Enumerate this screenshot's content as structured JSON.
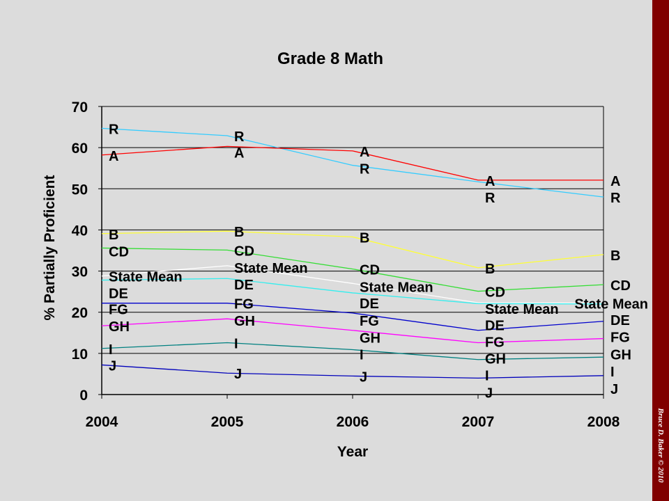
{
  "chart_data": {
    "type": "line",
    "title": "Grade 8 Math",
    "xlabel": "Year",
    "ylabel": "% Partially Proficient",
    "x": [
      2004,
      2005,
      2006,
      2007,
      2008
    ],
    "ylim": [
      0,
      70
    ],
    "yticks": [
      0,
      10,
      20,
      30,
      40,
      50,
      60,
      70
    ],
    "grid": true,
    "legend": "none (series labelled at each point)",
    "series": [
      {
        "name": "R",
        "color": "#33ccff",
        "values": [
          64.7,
          62.9,
          55.7,
          51.7,
          48.0
        ]
      },
      {
        "name": "A",
        "color": "#ff0000",
        "values": [
          58.2,
          60.3,
          59.2,
          52.1,
          52.1
        ]
      },
      {
        "name": "B",
        "color": "#ffff33",
        "values": [
          39.1,
          39.7,
          38.3,
          30.8,
          34.0
        ]
      },
      {
        "name": "CD",
        "color": "#33dd33",
        "values": [
          35.6,
          35.1,
          30.5,
          25.1,
          26.7
        ]
      },
      {
        "name": "State Mean",
        "color": "#ffffff",
        "values": [
          28.8,
          31.3,
          27.0,
          22.3,
          22.2
        ]
      },
      {
        "name": "DE",
        "color": "#33eeee",
        "values": [
          27.8,
          28.2,
          24.7,
          22.1,
          22.0
        ]
      },
      {
        "name": "FG",
        "color": "#0000cc",
        "values": [
          22.2,
          22.2,
          19.8,
          15.6,
          17.8
        ]
      },
      {
        "name": "GH",
        "color": "#ff00ff",
        "values": [
          16.7,
          18.4,
          15.6,
          12.6,
          13.6
        ]
      },
      {
        "name": "I",
        "color": "#008080",
        "values": [
          11.2,
          12.6,
          10.9,
          8.5,
          9.1
        ]
      },
      {
        "name": "J",
        "color": "#0000bb",
        "values": [
          7.2,
          5.2,
          4.5,
          4.0,
          4.6
        ]
      }
    ]
  },
  "sidebar": {
    "credit": "Bruce D. Baker © 2010",
    "color": "#800000"
  }
}
